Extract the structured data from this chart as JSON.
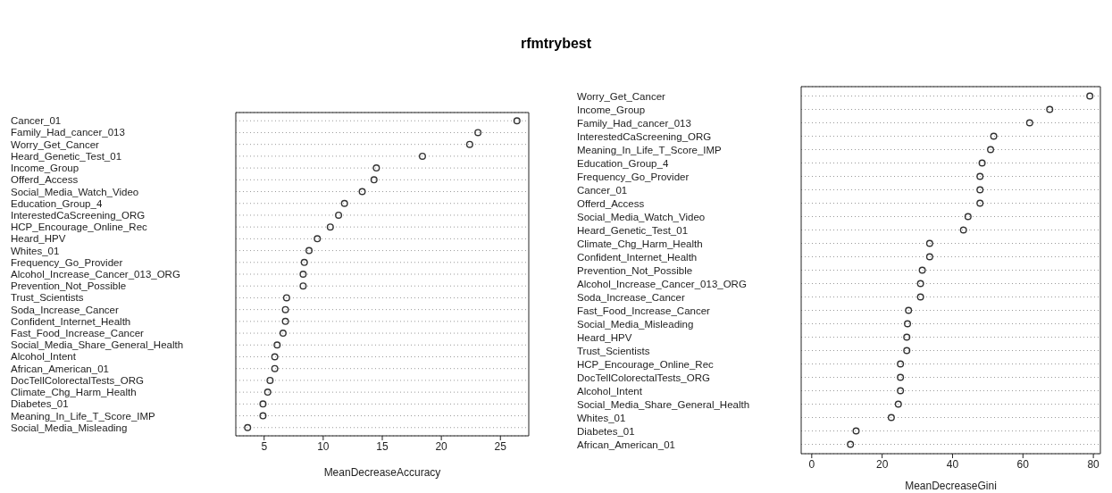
{
  "chart_data": [
    {
      "type": "scatter",
      "title": "rfmtrybest",
      "orientation": "horizontal",
      "xlabel": "MeanDecreaseAccuracy",
      "marker": "circle",
      "grid": "y",
      "categories": [
        "Cancer_01",
        "Family_Had_cancer_013",
        "Worry_Get_Cancer",
        "Heard_Genetic_Test_01",
        "Income_Group",
        "Offerd_Access",
        "Social_Media_Watch_Video",
        "Education_Group_4",
        "InterestedCaScreening_ORG",
        "HCP_Encourage_Online_Rec",
        "Heard_HPV",
        "Whites_01",
        "Frequency_Go_Provider",
        "Alcohol_Increase_Cancer_013_ORG",
        "Prevention_Not_Possible",
        "Trust_Scientists",
        "Soda_Increase_Cancer",
        "Confident_Internet_Health",
        "Fast_Food_Increase_Cancer",
        "Social_Media_Share_General_Health",
        "Alcohol_Intent",
        "African_American_01",
        "DocTellColorectalTests_ORG",
        "Climate_Chg_Harm_Health",
        "Diabetes_01",
        "Meaning_In_Life_T_Score_IMP",
        "Social_Media_Misleading"
      ],
      "values": [
        26.4,
        23.1,
        22.4,
        18.4,
        14.5,
        14.3,
        13.3,
        11.8,
        11.3,
        10.6,
        9.5,
        8.8,
        8.4,
        8.3,
        8.3,
        6.9,
        6.8,
        6.8,
        6.6,
        6.1,
        5.9,
        5.9,
        5.5,
        5.3,
        4.9,
        4.9,
        3.6
      ],
      "color": "#333333",
      "xlim": [
        2.6,
        27.4
      ],
      "xticks": [
        5,
        10,
        15,
        20,
        25
      ]
    },
    {
      "type": "scatter",
      "orientation": "horizontal",
      "xlabel": "MeanDecreaseGini",
      "marker": "circle",
      "grid": "y",
      "categories": [
        "Worry_Get_Cancer",
        "Income_Group",
        "Family_Had_cancer_013",
        "InterestedCaScreening_ORG",
        "Meaning_In_Life_T_Score_IMP",
        "Education_Group_4",
        "Frequency_Go_Provider",
        "Cancer_01",
        "Offerd_Access",
        "Social_Media_Watch_Video",
        "Heard_Genetic_Test_01",
        "Climate_Chg_Harm_Health",
        "Confident_Internet_Health",
        "Prevention_Not_Possible",
        "Alcohol_Increase_Cancer_013_ORG",
        "Soda_Increase_Cancer",
        "Fast_Food_Increase_Cancer",
        "Social_Media_Misleading",
        "Heard_HPV",
        "Trust_Scientists",
        "HCP_Encourage_Online_Rec",
        "DocTellColorectalTests_ORG",
        "Alcohol_Intent",
        "Social_Media_Share_General_Health",
        "Whites_01",
        "Diabetes_01",
        "African_American_01"
      ],
      "values": [
        79,
        67.6,
        61.9,
        51.7,
        50.8,
        48.4,
        47.8,
        47.8,
        47.8,
        44.4,
        43.1,
        33.5,
        33.5,
        31.4,
        30.9,
        30.9,
        27.5,
        27.2,
        27,
        27,
        25.2,
        25.2,
        25.2,
        24.6,
        22.6,
        12.6,
        11
      ],
      "color": "#333333",
      "xlim": [
        -3,
        82
      ],
      "xticks": [
        0,
        20,
        40,
        60,
        80
      ]
    }
  ]
}
